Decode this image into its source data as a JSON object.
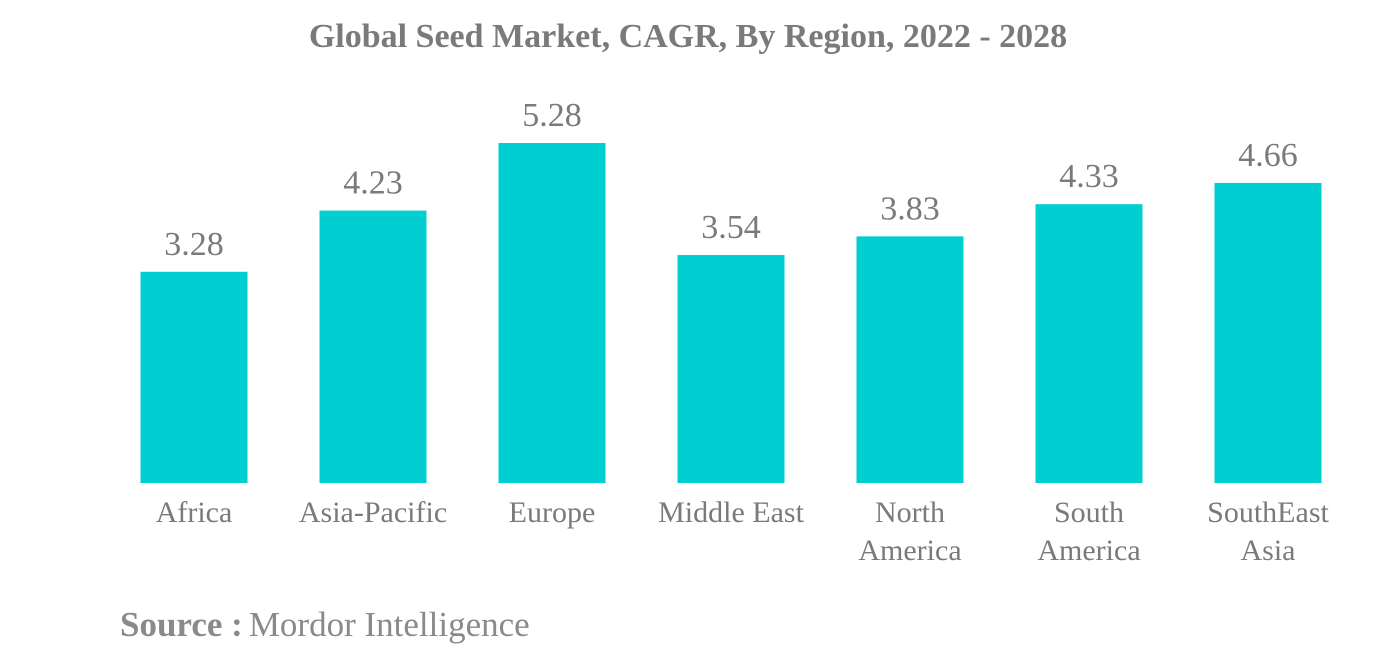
{
  "chart_data": {
    "type": "bar",
    "title": "Global Seed Market, CAGR, By Region, 2022 - 2028",
    "categories": [
      [
        "Africa"
      ],
      [
        "Asia-Pacific"
      ],
      [
        "Europe"
      ],
      [
        "Middle East"
      ],
      [
        "North",
        "America"
      ],
      [
        "South",
        "America"
      ],
      [
        "SouthEast",
        "Asia"
      ]
    ],
    "values": [
      3.28,
      4.23,
      5.28,
      3.54,
      3.83,
      4.33,
      4.66
    ],
    "value_labels": [
      "3.28",
      "4.23",
      "5.28",
      "3.54",
      "3.83",
      "4.33",
      "4.66"
    ],
    "bar_color": "#00ced1",
    "grid": false,
    "legend": "none",
    "xlabel": "",
    "ylabel": ""
  },
  "source": {
    "label": "Source :",
    "text": "Mordor Intelligence"
  },
  "colors": {
    "text": "#7a7a7a",
    "bar": "#00ced1"
  }
}
